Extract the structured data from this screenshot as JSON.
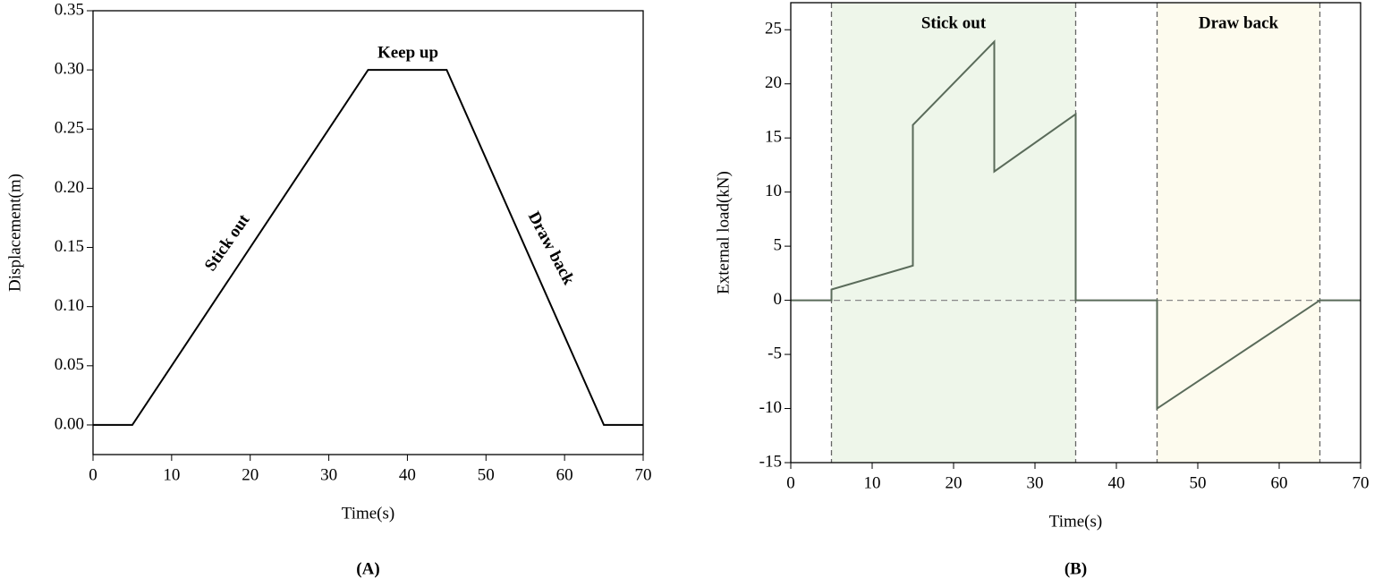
{
  "chart_data": [
    {
      "type": "line",
      "caption": "(A)",
      "x_label": "Time(s)",
      "y_label": "Displacement(m)",
      "x": [
        0,
        5,
        35,
        45,
        65,
        70
      ],
      "series": [
        {
          "color": "#000000",
          "values": [
            0,
            0,
            0.3,
            0.3,
            0,
            0
          ]
        }
      ],
      "xlim": [
        0,
        70
      ],
      "xticks": [
        0,
        10,
        20,
        30,
        40,
        50,
        60,
        70
      ],
      "ylim": [
        -0.025,
        0.35
      ],
      "yticks": [
        {
          "value": 0,
          "label": "0.00"
        },
        {
          "value": 0.05,
          "label": "0.05"
        },
        {
          "value": 0.1,
          "label": "0.10"
        },
        {
          "value": 0.15,
          "label": "0.15"
        },
        {
          "value": 0.2,
          "label": "0.20"
        },
        {
          "value": 0.25,
          "label": "0.25"
        },
        {
          "value": 0.3,
          "label": "0.30"
        },
        {
          "value": 0.35,
          "label": "0.35"
        }
      ],
      "annotations": [
        "Keep up",
        "Stick out",
        "Draw back"
      ]
    },
    {
      "type": "line",
      "caption": "(B)",
      "x_label": "Time(s)",
      "y_label": "External load(kN)",
      "x": [
        0,
        5,
        5,
        15,
        15,
        25,
        25,
        35,
        35,
        45,
        45,
        65,
        70
      ],
      "series": [
        {
          "color": "#5a6b5a",
          "values": [
            0,
            0,
            1,
            3.2,
            16.2,
            23.9,
            11.9,
            17.2,
            0,
            0,
            -10,
            0,
            0
          ]
        }
      ],
      "xlim": [
        0,
        70
      ],
      "xticks": [
        0,
        10,
        20,
        30,
        40,
        50,
        60,
        70
      ],
      "ylim": [
        -15,
        27.5
      ],
      "yticks": [
        -15,
        -10,
        -5,
        0,
        5,
        10,
        15,
        20,
        25
      ],
      "hline": 0,
      "regions": [
        {
          "x": [
            5,
            35
          ],
          "label": "Stick out",
          "color": "#eef6ea"
        },
        {
          "x": [
            45,
            65
          ],
          "label": "Draw back",
          "color": "#fdfbee"
        }
      ]
    }
  ]
}
